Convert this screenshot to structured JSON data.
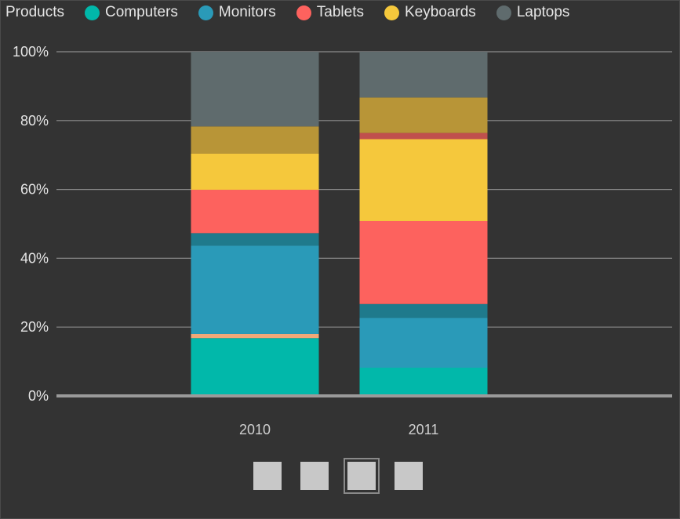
{
  "legend": {
    "title": "Products",
    "items": [
      {
        "label": "Computers",
        "color": "#01B8AA"
      },
      {
        "label": "Monitors",
        "color": "#2A9AB8"
      },
      {
        "label": "Tablets",
        "color": "#FD625E"
      },
      {
        "label": "Keyboards",
        "color": "#F5C83C"
      },
      {
        "label": "Laptops",
        "color": "#5F6B6D"
      }
    ]
  },
  "chart_data": {
    "type": "bar",
    "stacked": "percent",
    "categories": [
      "2010",
      "2011"
    ],
    "ylim": [
      0,
      100
    ],
    "yticks": [
      "0%",
      "20%",
      "40%",
      "60%",
      "80%",
      "100%"
    ],
    "ytick_values": [
      0,
      20,
      40,
      60,
      80,
      100
    ],
    "grid": true,
    "legend_position": "top-left",
    "series": [
      {
        "name": "Computers",
        "color": "#01B8AA",
        "values": [
          16.8,
          8.2
        ]
      },
      {
        "color": "#F2A878",
        "values": [
          1.2,
          0.0
        ]
      },
      {
        "name": "Monitors",
        "color": "#2A9AB8",
        "values": [
          25.7,
          14.5
        ]
      },
      {
        "color": "#1F7A8C",
        "values": [
          3.6,
          4.0
        ]
      },
      {
        "name": "Tablets",
        "color": "#FD625E",
        "values": [
          12.6,
          24.1
        ]
      },
      {
        "name": "Keyboards",
        "color": "#F5C83C",
        "values": [
          10.5,
          23.8
        ]
      },
      {
        "color": "#C0504D",
        "values": [
          0.0,
          1.8
        ]
      },
      {
        "color": "#B89537",
        "values": [
          7.9,
          10.3
        ]
      },
      {
        "name": "Laptops",
        "color": "#5F6B6D",
        "values": [
          21.7,
          13.3
        ]
      }
    ]
  },
  "pager": {
    "count": 4,
    "active_index": 2
  }
}
